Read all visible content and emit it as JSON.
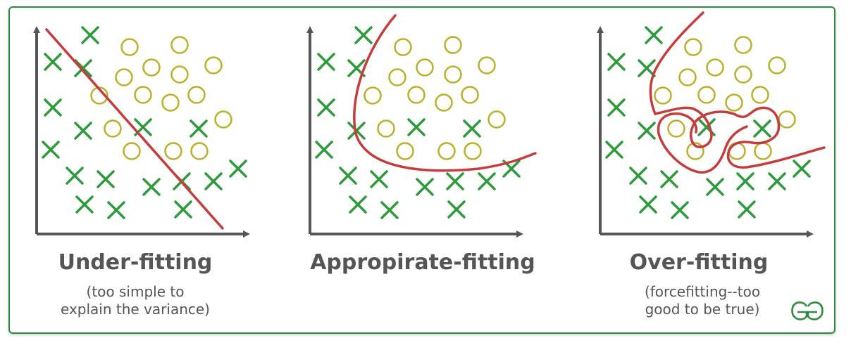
{
  "colors": {
    "frame": "#2e8b3e",
    "axis": "#555555",
    "cross": "#2f9a3b",
    "circle": "#b8b22a",
    "curve": "#c43c3c",
    "text": "#555555"
  },
  "panels": [
    {
      "title": "Under-fitting",
      "subtitle_line1": "(too simple to",
      "subtitle_line2": "explain the variance)"
    },
    {
      "title": "Appropirate-fitting",
      "subtitle_line1": "",
      "subtitle_line2": ""
    },
    {
      "title": "Over-fitting",
      "subtitle_line1": "(forcefitting--too",
      "subtitle_line2": "good to be true)"
    }
  ],
  "logo": {
    "name": "geeksforgeeks-logo-icon"
  }
}
